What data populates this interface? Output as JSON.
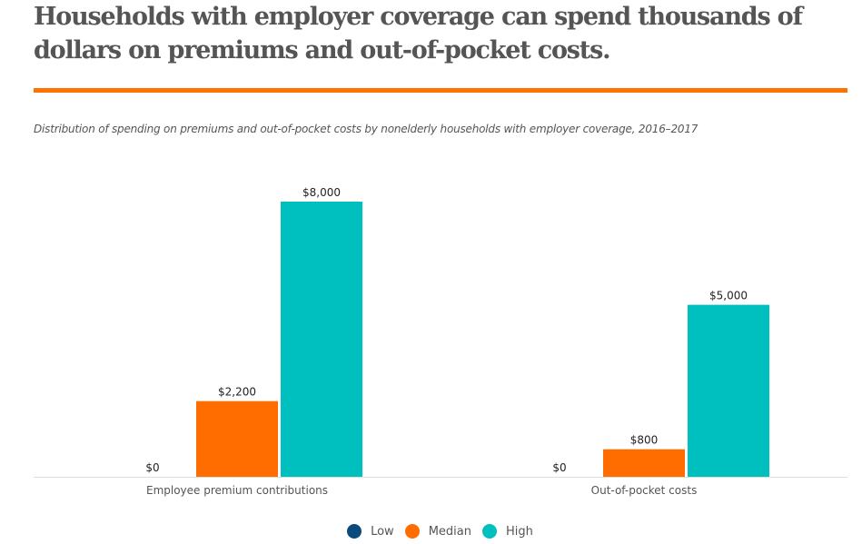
{
  "title": "Households with employer coverage can spend thousands of dollars on premiums and out-of-pocket costs.",
  "subtitle": "Distribution of spending on premiums and out-of-pocket costs by nonelderly households with employer coverage, 2016–2017",
  "colors": {
    "accent": "#ff7200",
    "Low": "#0b4a7c",
    "Median": "#ff6c00",
    "High": "#00c0bf"
  },
  "chart_data": {
    "type": "bar",
    "categories": [
      "Employee premium contributions",
      "Out-of-pocket costs"
    ],
    "series": [
      {
        "name": "Low",
        "values": [
          0,
          0
        ],
        "labels": [
          "$0",
          "$0"
        ]
      },
      {
        "name": "Median",
        "values": [
          2200,
          800
        ],
        "labels": [
          "$2,200",
          "$800"
        ]
      },
      {
        "name": "High",
        "values": [
          8000,
          5000
        ],
        "labels": [
          "$8,000",
          "$5,000"
        ]
      }
    ],
    "ylim": [
      0,
      8000
    ],
    "grid": false,
    "legend": "bottom"
  }
}
